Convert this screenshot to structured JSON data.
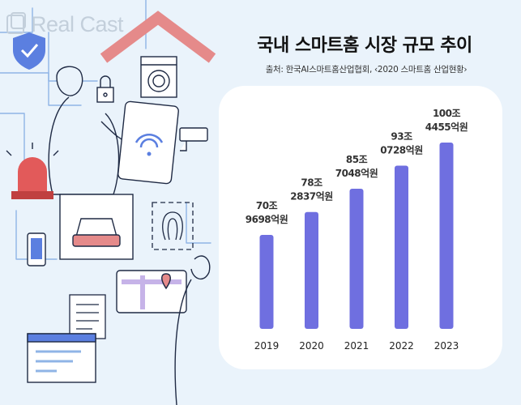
{
  "brand": {
    "logo_text": "Real Cast"
  },
  "header": {
    "title": "국내 스마트홈 시장 규모 추이",
    "source": "출처: 한국AI스마트홈산업협회, ‹2020 스마트홈 산업현황›"
  },
  "colors": {
    "bar": "#6f6fe0",
    "card": "#ffffff",
    "background": "#eaf3fb",
    "label": "#333333"
  },
  "chart_data": {
    "type": "bar",
    "title": "국내 스마트홈 시장 규모 추이",
    "categories": [
      "2019",
      "2020",
      "2021",
      "2022",
      "2023"
    ],
    "values": [
      709698,
      782837,
      857048,
      930728,
      1004455
    ],
    "value_unit": "억원",
    "data_labels": [
      [
        "70조",
        "9698억원"
      ],
      [
        "78조",
        "2837억원"
      ],
      [
        "85조",
        "7048억원"
      ],
      [
        "93조",
        "0728억원"
      ],
      [
        "100조",
        "4455억원"
      ]
    ],
    "xlabel": "",
    "ylabel": "",
    "grid": false,
    "legend": "none"
  }
}
